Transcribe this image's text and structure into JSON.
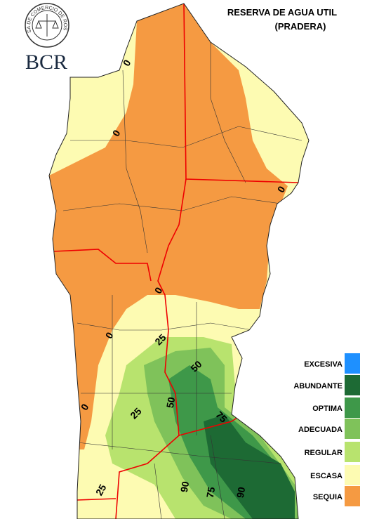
{
  "header": {
    "logo_text": "BOLSA DE COMERCIO DE ROSARIO",
    "brand": "BCR",
    "title_line1": "RESERVA DE AGUA UTIL",
    "title_line2": "(PRADERA)"
  },
  "legend": [
    {
      "label": "EXCESIVA",
      "color": "#1e90ff"
    },
    {
      "label": "ABUNDANTE",
      "color": "#1d6a34"
    },
    {
      "label": "OPTIMA",
      "color": "#3e9849"
    },
    {
      "label": "ADECUADA",
      "color": "#7fc25a"
    },
    {
      "label": "REGULAR",
      "color": "#b8e36e"
    },
    {
      "label": "ESCASA",
      "color": "#fdfbb2"
    },
    {
      "label": "SEQUIA",
      "color": "#f59a42"
    }
  ],
  "contour_labels": [
    "0",
    "0",
    "0",
    "0",
    "0",
    "0",
    "25",
    "25",
    "25",
    "50",
    "50",
    "75",
    "75",
    "90",
    "90"
  ]
}
